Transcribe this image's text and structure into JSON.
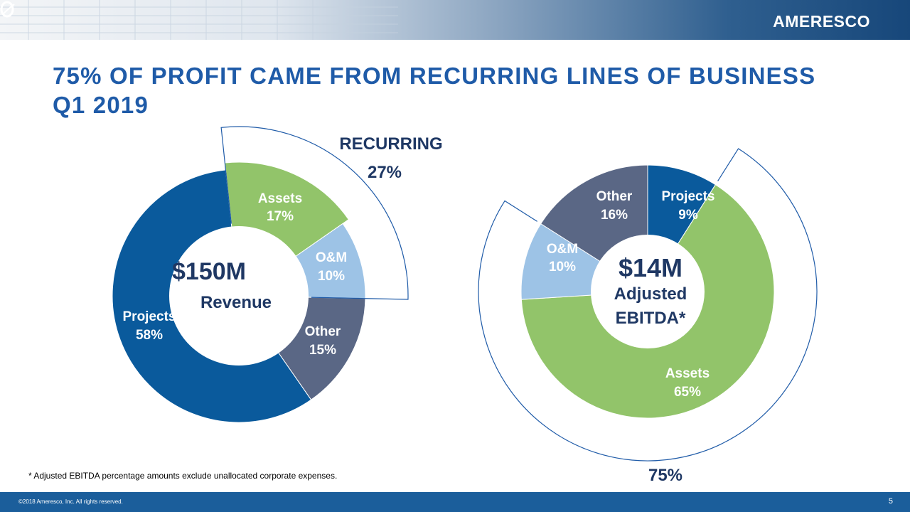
{
  "brand": {
    "logo_text": "AMERESCO"
  },
  "title": "75% OF PROFIT CAME FROM RECURRING LINES OF BUSINESS Q1 2019",
  "colors": {
    "title": "#1f5ba8",
    "projects": "#0a5a9c",
    "assets": "#92c46a",
    "om": "#9dc3e6",
    "other": "#5a6785",
    "label_dark": "#1f3864",
    "label_white": "#ffffff"
  },
  "chart_data": [
    {
      "type": "pie",
      "variant": "donut",
      "center_value": "$150M",
      "center_label": "Revenue",
      "callout": {
        "label": "RECURRING",
        "value": "27%"
      },
      "slices": [
        {
          "name": "Assets",
          "value": 17,
          "label": "17%",
          "color": "#92c46a"
        },
        {
          "name": "O&M",
          "value": 10,
          "label": "10%",
          "color": "#9dc3e6"
        },
        {
          "name": "Other",
          "value": 15,
          "label": "15%",
          "color": "#5a6785"
        },
        {
          "name": "Projects",
          "value": 58,
          "label": "58%",
          "color": "#0a5a9c"
        }
      ]
    },
    {
      "type": "pie",
      "variant": "donut",
      "center_value": "$14M",
      "center_label_line1": "Adjusted",
      "center_label_line2": "EBITDA*",
      "callout": {
        "label": "",
        "value": "75%"
      },
      "slices": [
        {
          "name": "Projects",
          "value": 9,
          "label": "9%",
          "color": "#0a5a9c"
        },
        {
          "name": "Assets",
          "value": 65,
          "label": "65%",
          "color": "#92c46a"
        },
        {
          "name": "O&M",
          "value": 10,
          "label": "10%",
          "color": "#9dc3e6"
        },
        {
          "name": "Other",
          "value": 16,
          "label": "16%",
          "color": "#5a6785"
        }
      ]
    }
  ],
  "footnote": "* Adjusted EBITDA percentage amounts exclude unallocated corporate expenses.",
  "footer": {
    "copyright": "©2018 Ameresco, Inc. All rights reserved.",
    "page": "5"
  }
}
